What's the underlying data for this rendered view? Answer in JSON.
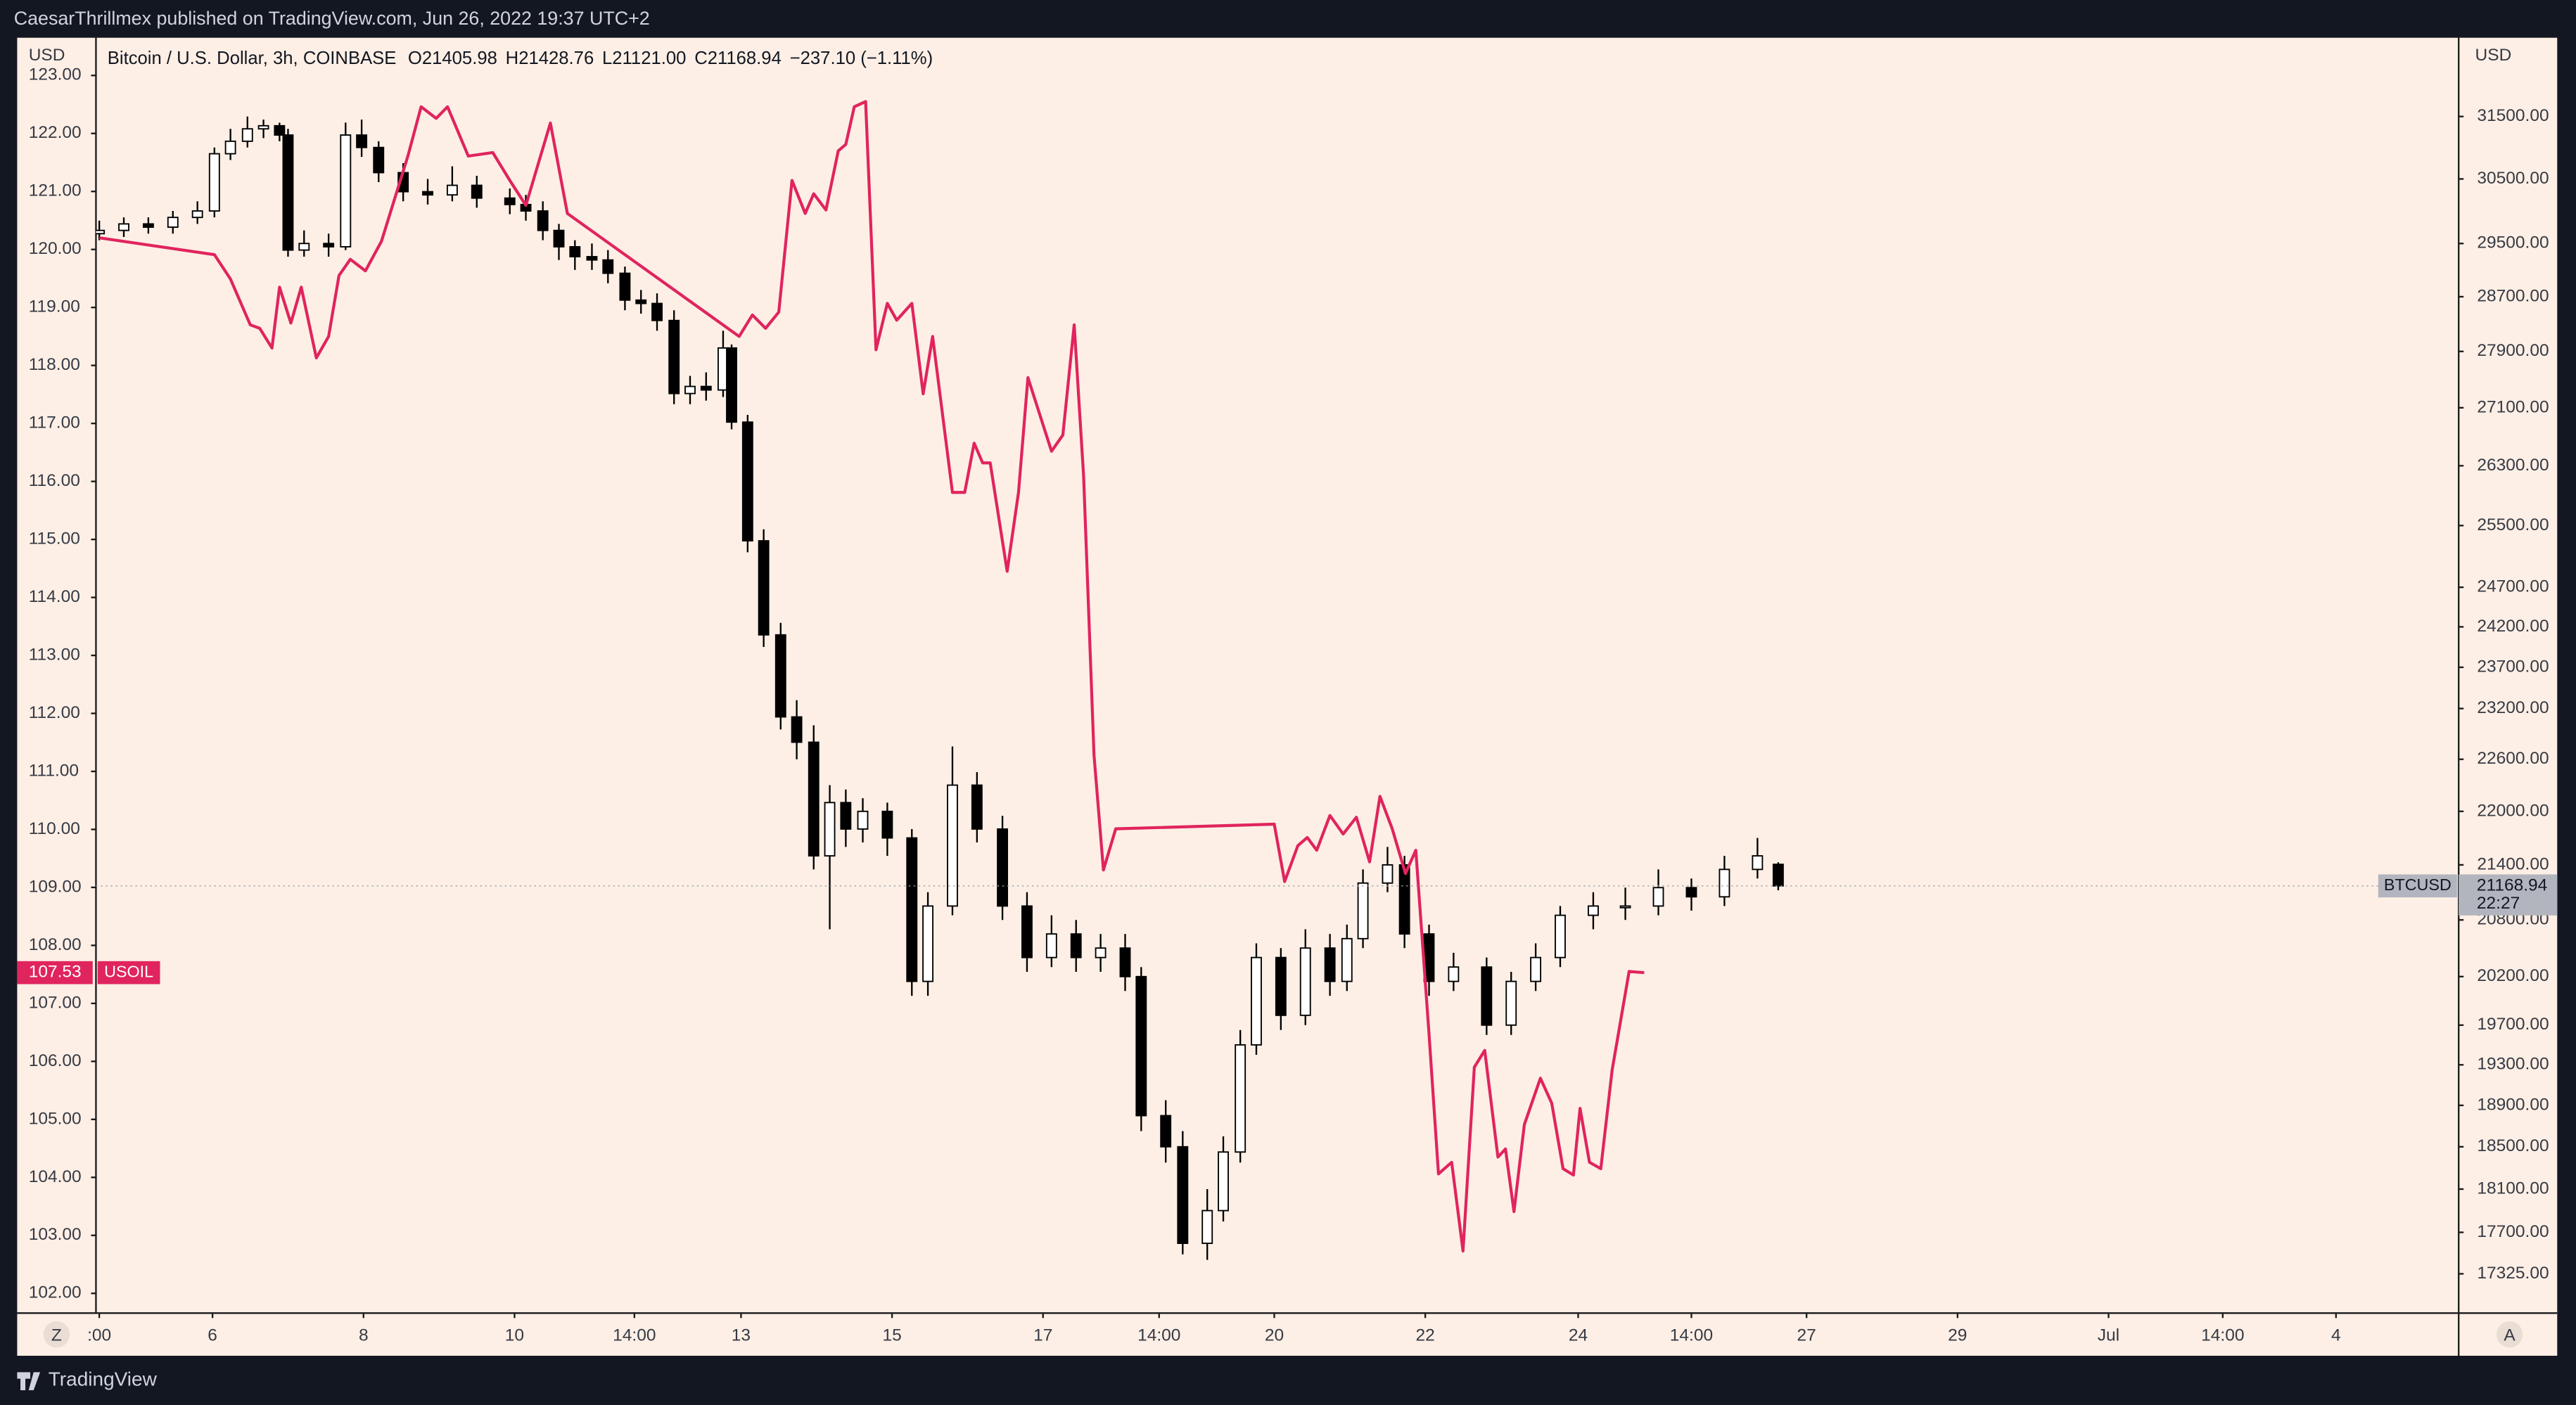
{
  "header": {
    "published": "CaesarThrillmex published on TradingView.com, Jun 26, 2022 19:37 UTC+2",
    "brand": "TradingView",
    "symbol": "Bitcoin / U.S. Dollar, 3h, COINBASE",
    "open": "O21405.98",
    "high": "H21428.76",
    "low": "L21121.00",
    "close": "C21168.94",
    "change": "−237.10 (−1.11%)"
  },
  "buttons": {
    "left": "Z",
    "right": "A"
  },
  "chart_data": {
    "type": "candlestick",
    "yaxis_label": "USD",
    "y2axis_label": "USD",
    "log_y2": true,
    "xlim": [
      -0.35,
      250
    ],
    "xticks": [
      {
        "value": 0,
        "label": ":00"
      },
      {
        "value": 12,
        "label": "6"
      },
      {
        "value": 28,
        "label": "8"
      },
      {
        "value": 44,
        "label": "10"
      },
      {
        "value": 56.7,
        "label": "14:00"
      },
      {
        "value": 68,
        "label": "13"
      },
      {
        "value": 84,
        "label": "15"
      },
      {
        "value": 100,
        "label": "17"
      },
      {
        "value": 112.3,
        "label": "14:00"
      },
      {
        "value": 124.5,
        "label": "20"
      },
      {
        "value": 140.5,
        "label": "22"
      },
      {
        "value": 156.7,
        "label": "24"
      },
      {
        "value": 168.7,
        "label": "14:00"
      },
      {
        "value": 180.9,
        "label": "27"
      },
      {
        "value": 196.9,
        "label": "29"
      },
      {
        "value": 212.9,
        "label": "Jul"
      },
      {
        "value": 225,
        "label": "14:00"
      },
      {
        "value": 237,
        "label": "4"
      }
    ],
    "ylim": [
      101.66,
      123.65
    ],
    "yticks": [
      {
        "value": 123,
        "label": "123.00"
      },
      {
        "value": 122,
        "label": "122.00"
      },
      {
        "value": 121,
        "label": "121.00"
      },
      {
        "value": 120,
        "label": "120.00"
      },
      {
        "value": 119,
        "label": "119.00"
      },
      {
        "value": 118,
        "label": "118.00"
      },
      {
        "value": 117,
        "label": "117.00"
      },
      {
        "value": 116,
        "label": "116.00"
      },
      {
        "value": 115,
        "label": "115.00"
      },
      {
        "value": 114,
        "label": "114.00"
      },
      {
        "value": 113,
        "label": "113.00"
      },
      {
        "value": 112,
        "label": "112.00"
      },
      {
        "value": 111,
        "label": "111.00"
      },
      {
        "value": 110,
        "label": "110.00"
      },
      {
        "value": 109,
        "label": "109.00"
      },
      {
        "value": 108,
        "label": "108.00"
      },
      {
        "value": 107,
        "label": "107.00"
      },
      {
        "value": 106,
        "label": "106.00"
      },
      {
        "value": 105,
        "label": "105.00"
      },
      {
        "value": 104,
        "label": "104.00"
      },
      {
        "value": 103,
        "label": "103.00"
      },
      {
        "value": 102,
        "label": "102.00"
      }
    ],
    "y2lim": [
      16977,
      32808
    ],
    "y2ticks": [
      {
        "value": 31500,
        "label": "31500.00"
      },
      {
        "value": 30500,
        "label": "30500.00"
      },
      {
        "value": 29500,
        "label": "29500.00"
      },
      {
        "value": 28700,
        "label": "28700.00"
      },
      {
        "value": 27900,
        "label": "27900.00"
      },
      {
        "value": 27100,
        "label": "27100.00"
      },
      {
        "value": 26300,
        "label": "26300.00"
      },
      {
        "value": 25500,
        "label": "25500.00"
      },
      {
        "value": 24700,
        "label": "24700.00"
      },
      {
        "value": 24200,
        "label": "24200.00"
      },
      {
        "value": 23700,
        "label": "23700.00"
      },
      {
        "value": 23200,
        "label": "23200.00"
      },
      {
        "value": 22600,
        "label": "22600.00"
      },
      {
        "value": 22000,
        "label": "22000.00"
      },
      {
        "value": 21400,
        "label": "21400.00"
      },
      {
        "value": 20800,
        "label": "20800.00"
      },
      {
        "value": 20200,
        "label": "20200.00"
      },
      {
        "value": 19700,
        "label": "19700.00"
      },
      {
        "value": 19300,
        "label": "19300.00"
      },
      {
        "value": 18900,
        "label": "18900.00"
      },
      {
        "value": 18500,
        "label": "18500.00"
      },
      {
        "value": 18100,
        "label": "18100.00"
      },
      {
        "value": 17700,
        "label": "17700.00"
      },
      {
        "value": 17325,
        "label": "17325.00"
      }
    ],
    "candles": {
      "name": "BTCUSD",
      "axis": "y2",
      "up_color": "#ffffff",
      "down_color": "#000000",
      "time_label": "22:27",
      "x": [
        0,
        2.6,
        5.2,
        7.8,
        10.4,
        12.2,
        13.9,
        15.7,
        17.4,
        19.1,
        20,
        21.7,
        24.3,
        26.1,
        27.8,
        29.6,
        32.2,
        34.8,
        37.4,
        40,
        43.5,
        45.2,
        47,
        48.7,
        50.4,
        52.2,
        53.9,
        55.7,
        57.4,
        59.1,
        60.9,
        62.6,
        64.3,
        66.1,
        67,
        68.7,
        70.4,
        72.2,
        73.9,
        75.7,
        77.4,
        79.1,
        80.9,
        83.5,
        86.1,
        87.8,
        90.4,
        93,
        95.7,
        98.3,
        100.9,
        103.5,
        106.1,
        108.7,
        110.4,
        113,
        114.8,
        117.4,
        119.1,
        120.9,
        122.6,
        125.2,
        127.8,
        130.4,
        132.2,
        133.9,
        136.5,
        138.3,
        140.9,
        143.5,
        147,
        149.6,
        152.2,
        154.8,
        158.3,
        161.7,
        165.2,
        168.7,
        172.2,
        175.7,
        177.9
      ],
      "open": [
        29650,
        29700,
        29800,
        29750,
        29900,
        30000,
        30900,
        31100,
        31300,
        31350,
        31200,
        29400,
        29500,
        29450,
        31200,
        31000,
        30600,
        30300,
        30250,
        30400,
        30200,
        30100,
        30000,
        29700,
        29450,
        29300,
        29250,
        29050,
        28650,
        28600,
        28350,
        27300,
        27400,
        27350,
        27950,
        26900,
        25300,
        24100,
        23100,
        22800,
        21500,
        22100,
        21800,
        22000,
        21700,
        20150,
        20950,
        22300,
        21800,
        20950,
        20400,
        20650,
        20400,
        20500,
        20200,
        18800,
        18500,
        17600,
        17900,
        18450,
        19500,
        20400,
        19800,
        20500,
        20150,
        20600,
        21200,
        21400,
        20650,
        20150,
        20300,
        19700,
        20150,
        20400,
        20850,
        20950,
        20950,
        21150,
        21050,
        21350,
        21405.98
      ],
      "high": [
        29850,
        29900,
        29900,
        30000,
        30150,
        31000,
        31300,
        31500,
        31450,
        31400,
        31300,
        29700,
        29650,
        31400,
        31450,
        31100,
        30750,
        30500,
        30700,
        30550,
        30350,
        30250,
        30150,
        29800,
        29550,
        29500,
        29400,
        29150,
        28800,
        28750,
        28500,
        27550,
        27600,
        28200,
        28000,
        27000,
        25450,
        24250,
        23300,
        23000,
        22300,
        22250,
        22150,
        22100,
        21800,
        21100,
        22750,
        22450,
        21950,
        21100,
        20850,
        20800,
        20650,
        20650,
        20300,
        18950,
        18650,
        18100,
        18600,
        19650,
        20550,
        20500,
        20700,
        20650,
        20750,
        21350,
        21600,
        21500,
        20750,
        20450,
        20400,
        20250,
        20550,
        20950,
        21100,
        21150,
        21350,
        21250,
        21500,
        21700,
        21428.76
      ],
      "low": [
        29550,
        29600,
        29650,
        29650,
        29800,
        29900,
        30800,
        31000,
        31150,
        31100,
        29300,
        29300,
        29300,
        29400,
        30850,
        30450,
        30150,
        30100,
        30150,
        30050,
        29950,
        29850,
        29550,
        29250,
        29100,
        29100,
        28900,
        28500,
        28450,
        28200,
        27150,
        27150,
        27200,
        27250,
        26800,
        25150,
        23950,
        22950,
        22600,
        21350,
        20700,
        21600,
        21650,
        21500,
        20000,
        20000,
        20850,
        21650,
        20800,
        20250,
        20300,
        20250,
        20250,
        20050,
        18650,
        18350,
        17500,
        17450,
        17800,
        18350,
        19400,
        19650,
        19700,
        20000,
        20050,
        20500,
        21100,
        20500,
        20000,
        20050,
        19600,
        19600,
        20050,
        20300,
        20700,
        20800,
        20850,
        20900,
        20950,
        21250,
        21121
      ],
      "close": [
        29700,
        29800,
        29750,
        29900,
        30000,
        30900,
        31100,
        31300,
        31350,
        31200,
        29400,
        29500,
        29450,
        31200,
        31000,
        30600,
        30300,
        30250,
        30400,
        30200,
        30100,
        30000,
        29700,
        29450,
        29300,
        29250,
        29050,
        28650,
        28600,
        28350,
        27300,
        27400,
        27350,
        27950,
        26900,
        25300,
        24100,
        23100,
        22800,
        21500,
        22100,
        21800,
        22000,
        21700,
        20150,
        20950,
        22300,
        21800,
        20950,
        20400,
        20650,
        20400,
        20500,
        20200,
        18800,
        18500,
        17600,
        17900,
        18450,
        19500,
        20400,
        19800,
        20500,
        20150,
        20600,
        21200,
        21400,
        20650,
        20150,
        20300,
        19700,
        20150,
        20400,
        20850,
        20950,
        20950,
        21150,
        21050,
        21350,
        21500,
        21168.94
      ]
    },
    "series": [
      {
        "name": "USOIL",
        "color": "#e0245e",
        "x": [
          0,
          12.2,
          13.9,
          16.0,
          17.0,
          18.3,
          19.1,
          20.3,
          21.4,
          23.0,
          24.3,
          25.4,
          26.6,
          28.2,
          29.9,
          32.7,
          34.1,
          35.7,
          36.9,
          39.1,
          41.7,
          43.5,
          45.2,
          47.8,
          49.6,
          67.8,
          69.2,
          70.6,
          72.0,
          73.4,
          74.8,
          75.7,
          77.0,
          78.3,
          79.1,
          80.0,
          81.2,
          82.3,
          83.5,
          84.5,
          86.1,
          87.3,
          88.3,
          90.4,
          91.7,
          92.7,
          93.6,
          94.4,
          96.2,
          97.4,
          98.4,
          100.9,
          102.1,
          103.3,
          104.3,
          105.4,
          106.4,
          107.7,
          124.5,
          125.6,
          127.0,
          128.0,
          129.0,
          130.4,
          131.8,
          133.2,
          134.6,
          135.7,
          137.0,
          138.4,
          139.5,
          140.9,
          141.9,
          143.3,
          144.5,
          145.7,
          146.8,
          148.2,
          149.0,
          149.9,
          151.0,
          152.7,
          153.9,
          155.1,
          156.2,
          156.9,
          157.9,
          159.1,
          160.3,
          162.1,
          163.7
        ],
        "values": [
          120.2,
          119.91,
          119.49,
          118.7,
          118.64,
          118.3,
          119.35,
          118.73,
          119.35,
          118.13,
          118.5,
          119.55,
          119.83,
          119.63,
          120.14,
          121.61,
          122.46,
          122.26,
          122.46,
          121.61,
          121.67,
          121.19,
          120.76,
          122.18,
          120.62,
          118.5,
          118.87,
          118.64,
          118.92,
          121.19,
          120.62,
          120.96,
          120.68,
          121.7,
          121.81,
          122.46,
          122.55,
          118.27,
          119.07,
          118.78,
          119.07,
          117.51,
          118.5,
          115.81,
          115.81,
          116.66,
          116.32,
          116.32,
          114.45,
          115.81,
          117.79,
          116.52,
          116.8,
          118.7,
          116.09,
          111.28,
          109.3,
          110.01,
          110.09,
          109.1,
          109.72,
          109.86,
          109.64,
          110.24,
          109.92,
          110.21,
          109.44,
          110.57,
          110.01,
          109.24,
          109.64,
          106.47,
          104.06,
          104.26,
          102.73,
          105.9,
          106.19,
          104.35,
          104.49,
          103.41,
          104.91,
          105.71,
          105.28,
          104.15,
          104.04,
          105.19,
          104.26,
          104.15,
          105.85,
          107.55,
          107.53
        ]
      }
    ]
  }
}
